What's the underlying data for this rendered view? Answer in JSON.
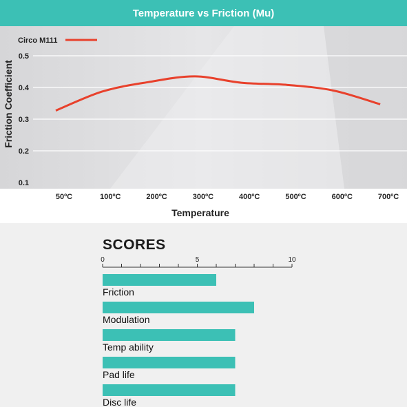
{
  "chart_data": [
    {
      "type": "line",
      "title": "Temperature vs Friction (Mu)",
      "xlabel": "Temperature",
      "ylabel": "Friction Coefficient",
      "categories": [
        "50ºC",
        "100ºC",
        "200ºC",
        "300ºC",
        "400ºC",
        "500ºC",
        "600ºC",
        "700ºC"
      ],
      "y_ticks": [
        "0.5",
        "0.4",
        "0.3",
        "0.2",
        "0.1"
      ],
      "ylim": [
        0.1,
        0.5
      ],
      "legend": "top-left",
      "series": [
        {
          "name": "Circo M111",
          "color": "#e8412c",
          "values": [
            0.327,
            0.387,
            0.417,
            0.435,
            0.415,
            0.408,
            0.39,
            0.347
          ]
        }
      ]
    },
    {
      "type": "bar",
      "title": "SCORES",
      "orientation": "horizontal",
      "xlim": [
        0,
        10
      ],
      "axis_labels": [
        "0",
        "5",
        "10"
      ],
      "categories": [
        "Friction",
        "Modulation",
        "Temp ability",
        "Pad life",
        "Disc life"
      ],
      "values": [
        6,
        8,
        7,
        7,
        7
      ],
      "color": "#3cc0b5"
    }
  ]
}
